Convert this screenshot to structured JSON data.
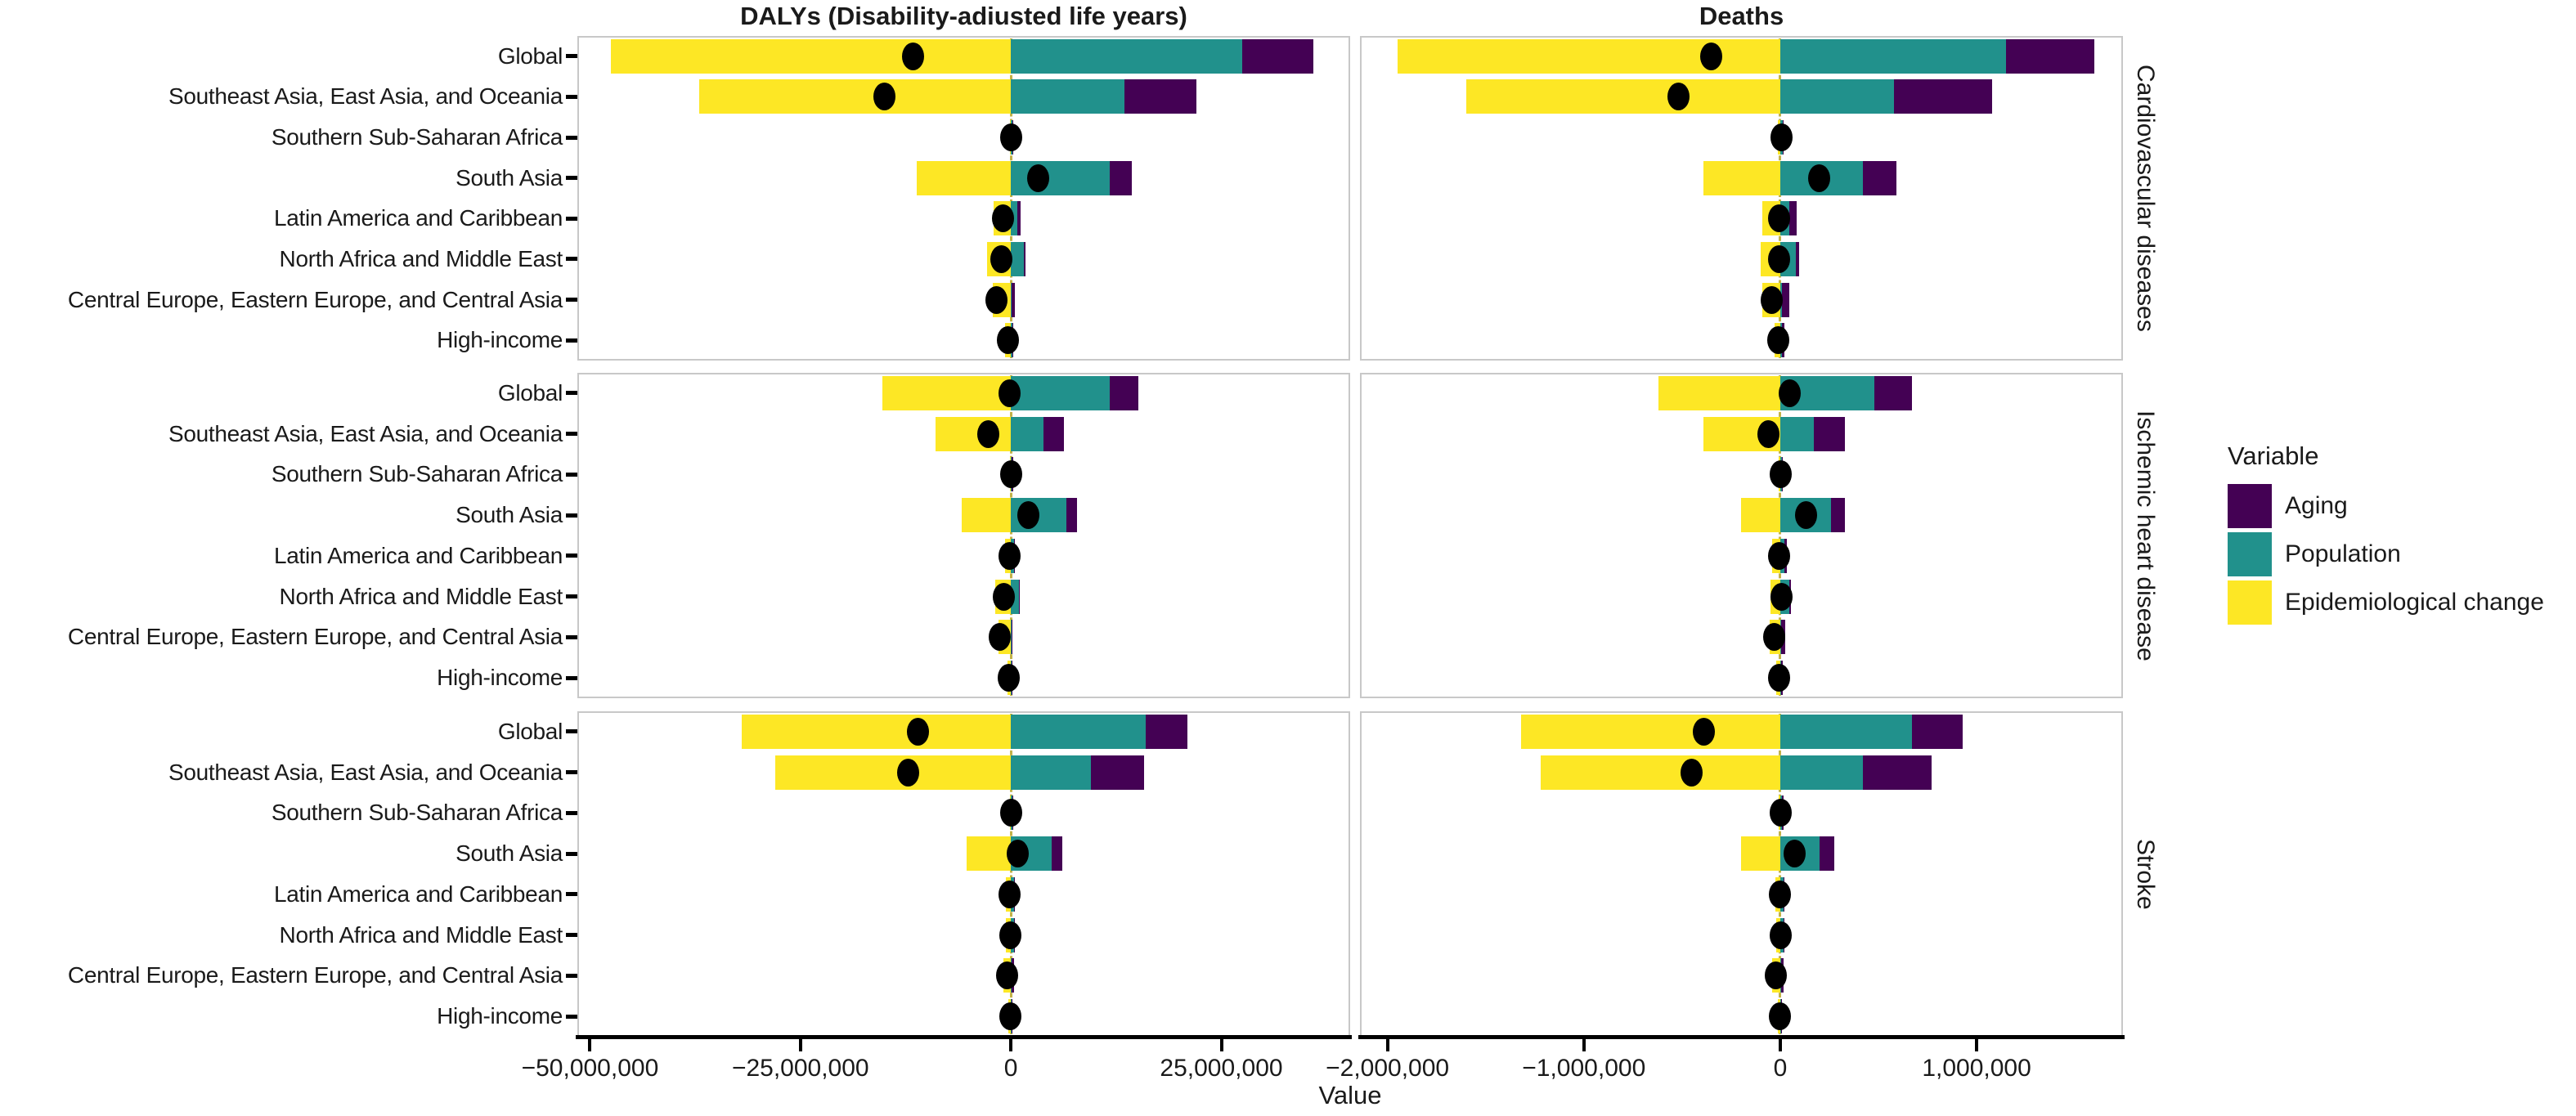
{
  "figure": {
    "x_axis_label": "Value"
  },
  "colors": {
    "aging": "#440154",
    "population": "#21918c",
    "epidemiological_change": "#fde725",
    "net_dot": "#000000",
    "zero_line": "#bfae3e",
    "panel_border": "#c8c8c8",
    "axis_line": "#000000"
  },
  "legend": {
    "title": "Variable",
    "items": [
      {
        "label": "Aging",
        "color": "#440154"
      },
      {
        "label": "Population",
        "color": "#21918c"
      },
      {
        "label": "Epidemiological change",
        "color": "#fde725"
      }
    ]
  },
  "chart_data": {
    "type": "bar",
    "orientation": "horizontal-stacked-with-net-dot",
    "grid": false,
    "legend_position": "right",
    "categories": [
      "Global",
      "Southeast Asia, East Asia, and Oceania",
      "Southern Sub-Saharan Africa",
      "South Asia",
      "Latin America and Caribbean",
      "North Africa and Middle East",
      "Central Europe, Eastern Europe, and Central Asia",
      "High-income"
    ],
    "facet_rows": [
      "Cardiovascular diseases",
      "Ischemic heart disease",
      "Stroke"
    ],
    "facet_columns": [
      {
        "title": "DALYs (Disability-adiusted life years)",
        "x_tick_values": [
          -50000000,
          -25000000,
          0,
          25000000
        ],
        "x_tick_labels": [
          "−50,000,000",
          "−25,000,000",
          "0",
          "25,000,000"
        ],
        "x_range": [
          -51500000,
          40300000
        ]
      },
      {
        "title": "Deaths",
        "x_tick_values": [
          -2000000,
          -1000000,
          0,
          1000000
        ],
        "x_tick_labels": [
          "−2,000,000",
          "−1,000,000",
          "0",
          "1,000,000"
        ],
        "x_range": [
          -2140000,
          1745000
        ]
      }
    ],
    "panels": [
      {
        "row": "Cardiovascular diseases",
        "column": "DALYs (Disability-adiusted life years)",
        "values": [
          {
            "region": "Global",
            "epidemiological_change": -47500000,
            "population": 27500000,
            "aging": 8400000,
            "net": -11600000
          },
          {
            "region": "Southeast Asia, East Asia, and Oceania",
            "epidemiological_change": -37000000,
            "population": 13500000,
            "aging": 8500000,
            "net": -15000000
          },
          {
            "region": "Southern Sub-Saharan Africa",
            "epidemiological_change": -150000,
            "population": 150000,
            "aging": 60000,
            "net": 60000
          },
          {
            "region": "South Asia",
            "epidemiological_change": -11200000,
            "population": 11700000,
            "aging": 2700000,
            "net": 3200000
          },
          {
            "region": "Latin America and Caribbean",
            "epidemiological_change": -2100000,
            "population": 800000,
            "aging": 400000,
            "net": -900000
          },
          {
            "region": "North Africa and Middle East",
            "epidemiological_change": -2800000,
            "population": 1500000,
            "aging": 200000,
            "net": -1100000
          },
          {
            "region": "Central Europe, Eastern Europe, and Central Asia",
            "epidemiological_change": -2200000,
            "population": 100000,
            "aging": 350000,
            "net": -1750000
          },
          {
            "region": "High-income",
            "epidemiological_change": -700000,
            "population": 150000,
            "aging": 150000,
            "net": -400000
          }
        ]
      },
      {
        "row": "Cardiovascular diseases",
        "column": "Deaths",
        "values": [
          {
            "region": "Global",
            "epidemiological_change": -1950000,
            "population": 1150000,
            "aging": 450000,
            "net": -350000
          },
          {
            "region": "Southeast Asia, East Asia, and Oceania",
            "epidemiological_change": -1600000,
            "population": 580000,
            "aging": 500000,
            "net": -520000
          },
          {
            "region": "Southern Sub-Saharan Africa",
            "epidemiological_change": -12000,
            "population": 12000,
            "aging": 5000,
            "net": 5000
          },
          {
            "region": "South Asia",
            "epidemiological_change": -390000,
            "population": 420000,
            "aging": 170000,
            "net": 200000
          },
          {
            "region": "Latin America and Caribbean",
            "epidemiological_change": -90000,
            "population": 45000,
            "aging": 40000,
            "net": -5000
          },
          {
            "region": "North Africa and Middle East",
            "epidemiological_change": -100000,
            "population": 80000,
            "aging": 15000,
            "net": -5000
          },
          {
            "region": "Central Europe, Eastern Europe, and Central Asia",
            "epidemiological_change": -90000,
            "population": 10000,
            "aging": 35000,
            "net": -45000
          },
          {
            "region": "High-income",
            "epidemiological_change": -30000,
            "population": 10000,
            "aging": 10000,
            "net": -10000
          }
        ]
      },
      {
        "row": "Ischemic heart disease",
        "column": "DALYs (Disability-adiusted life years)",
        "values": [
          {
            "region": "Global",
            "epidemiological_change": -15300000,
            "population": 11700000,
            "aging": 3400000,
            "net": -200000
          },
          {
            "region": "Southeast Asia, East Asia, and Oceania",
            "epidemiological_change": -9000000,
            "population": 3900000,
            "aging": 2400000,
            "net": -2700000
          },
          {
            "region": "Southern Sub-Saharan Africa",
            "epidemiological_change": -120000,
            "population": 120000,
            "aging": 40000,
            "net": 40000
          },
          {
            "region": "South Asia",
            "epidemiological_change": -5800000,
            "population": 6600000,
            "aging": 1300000,
            "net": 2100000
          },
          {
            "region": "Latin America and Caribbean",
            "epidemiological_change": -700000,
            "population": 350000,
            "aging": 150000,
            "net": -200000
          },
          {
            "region": "North Africa and Middle East",
            "epidemiological_change": -1900000,
            "population": 950000,
            "aging": 150000,
            "net": -800000
          },
          {
            "region": "Central Europe, Eastern Europe, and Central Asia",
            "epidemiological_change": -1500000,
            "population": 50000,
            "aging": 150000,
            "net": -1300000
          },
          {
            "region": "High-income",
            "epidemiological_change": -400000,
            "population": 50000,
            "aging": 50000,
            "net": -300000
          }
        ]
      },
      {
        "row": "Ischemic heart disease",
        "column": "Deaths",
        "values": [
          {
            "region": "Global",
            "epidemiological_change": -620000,
            "population": 480000,
            "aging": 190000,
            "net": 50000
          },
          {
            "region": "Southeast Asia, East Asia, and Oceania",
            "epidemiological_change": -390000,
            "population": 170000,
            "aging": 160000,
            "net": -60000
          },
          {
            "region": "Southern Sub-Saharan Africa",
            "epidemiological_change": -8000,
            "population": 8000,
            "aging": 3000,
            "net": 3000
          },
          {
            "region": "South Asia",
            "epidemiological_change": -200000,
            "population": 260000,
            "aging": 70000,
            "net": 130000
          },
          {
            "region": "Latin America and Caribbean",
            "epidemiological_change": -40000,
            "population": 20000,
            "aging": 15000,
            "net": -5000
          },
          {
            "region": "North Africa and Middle East",
            "epidemiological_change": -50000,
            "population": 45000,
            "aging": 10000,
            "net": 5000
          },
          {
            "region": "Central Europe, Eastern Europe, and Central Asia",
            "epidemiological_change": -55000,
            "population": 5000,
            "aging": 20000,
            "net": -30000
          },
          {
            "region": "High-income",
            "epidemiological_change": -20000,
            "population": 5000,
            "aging": 8000,
            "net": -7000
          }
        ]
      },
      {
        "row": "Stroke",
        "column": "DALYs (Disability-adiusted life years)",
        "values": [
          {
            "region": "Global",
            "epidemiological_change": -32000000,
            "population": 16000000,
            "aging": 5000000,
            "net": -11000000
          },
          {
            "region": "Southeast Asia, East Asia, and Oceania",
            "epidemiological_change": -28000000,
            "population": 9500000,
            "aging": 6300000,
            "net": -12200000
          },
          {
            "region": "Southern Sub-Saharan Africa",
            "epidemiological_change": -150000,
            "population": 150000,
            "aging": 50000,
            "net": 50000
          },
          {
            "region": "South Asia",
            "epidemiological_change": -5300000,
            "population": 4800000,
            "aging": 1300000,
            "net": 800000
          },
          {
            "region": "Latin America and Caribbean",
            "epidemiological_change": -600000,
            "population": 350000,
            "aging": 100000,
            "net": -150000
          },
          {
            "region": "North Africa and Middle East",
            "epidemiological_change": -550000,
            "population": 350000,
            "aging": 100000,
            "net": -100000
          },
          {
            "region": "Central Europe, Eastern Europe, and Central Asia",
            "epidemiological_change": -850000,
            "population": 100000,
            "aging": 250000,
            "net": -500000
          },
          {
            "region": "High-income",
            "epidemiological_change": -300000,
            "population": 100000,
            "aging": 100000,
            "net": -100000
          }
        ]
      },
      {
        "row": "Stroke",
        "column": "Deaths",
        "values": [
          {
            "region": "Global",
            "epidemiological_change": -1320000,
            "population": 670000,
            "aging": 260000,
            "net": -390000
          },
          {
            "region": "Southeast Asia, East Asia, and Oceania",
            "epidemiological_change": -1220000,
            "population": 420000,
            "aging": 350000,
            "net": -450000
          },
          {
            "region": "Southern Sub-Saharan Africa",
            "epidemiological_change": -10000,
            "population": 10000,
            "aging": 4000,
            "net": 4000
          },
          {
            "region": "South Asia",
            "epidemiological_change": -200000,
            "population": 200000,
            "aging": 75000,
            "net": 75000
          },
          {
            "region": "Latin America and Caribbean",
            "epidemiological_change": -25000,
            "population": 15000,
            "aging": 8000,
            "net": -2000
          },
          {
            "region": "North Africa and Middle East",
            "epidemiological_change": -20000,
            "population": 18000,
            "aging": 5000,
            "net": 3000
          },
          {
            "region": "Central Europe, Eastern Europe, and Central Asia",
            "epidemiological_change": -40000,
            "population": 5000,
            "aging": 12000,
            "net": -23000
          },
          {
            "region": "High-income",
            "epidemiological_change": -12000,
            "population": 5000,
            "aging": 5000,
            "net": -2000
          }
        ]
      }
    ],
    "title": "",
    "xlabel": "Value",
    "ylabel": ""
  }
}
